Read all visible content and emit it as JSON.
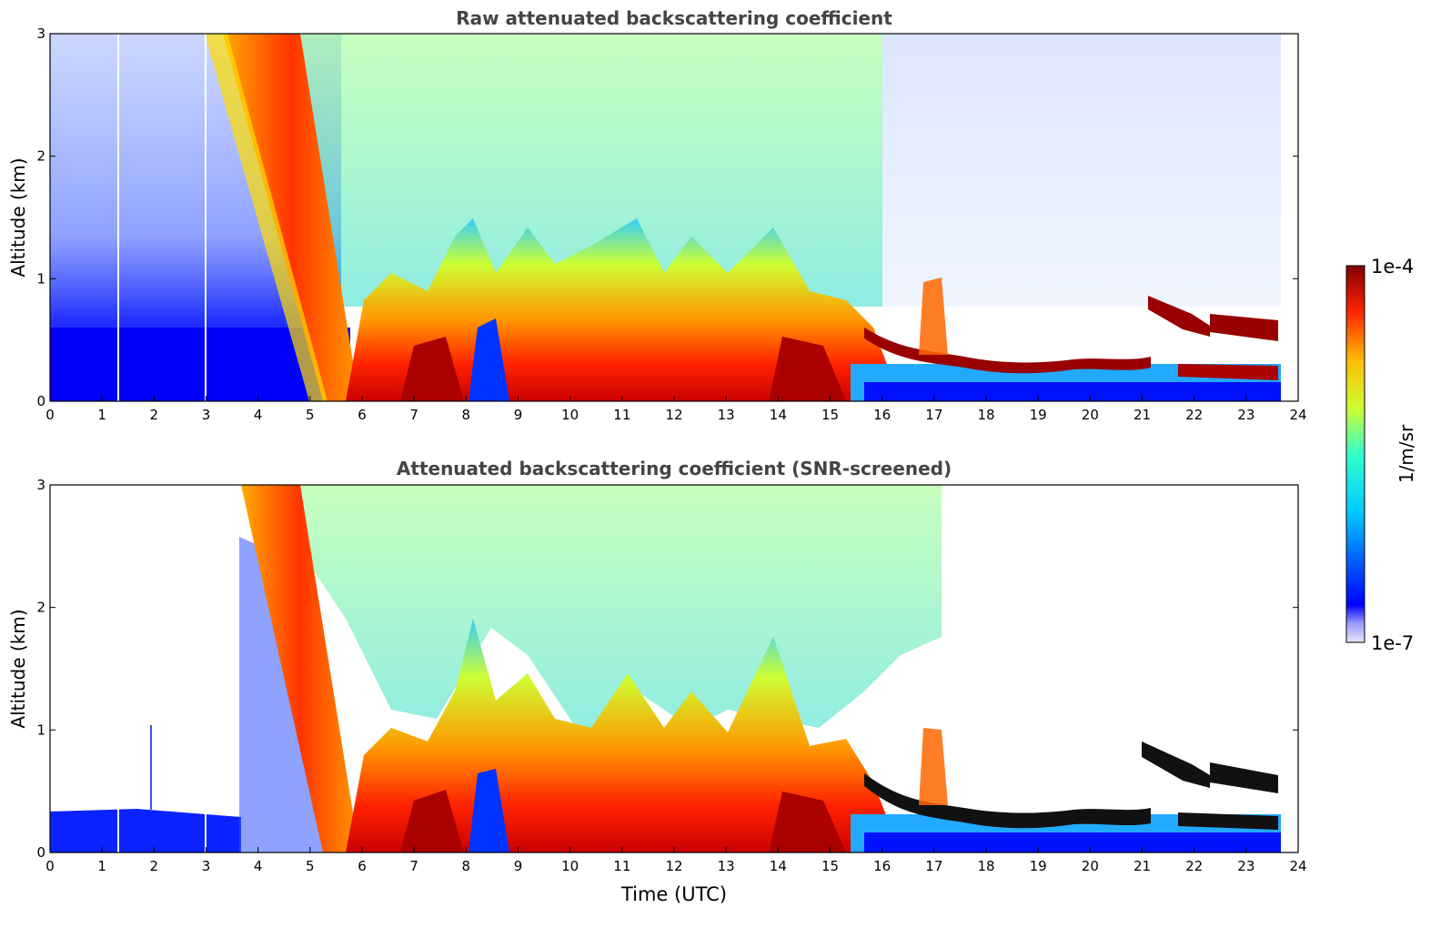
{
  "chart_data": [
    {
      "type": "heatmap",
      "title": "Raw attenuated backscattering coefficient",
      "xlabel": "",
      "ylabel": "Altitude (km)",
      "xlim": [
        0,
        24
      ],
      "ylim": [
        0,
        3
      ],
      "x_ticks": [
        "0",
        "1",
        "2",
        "3",
        "4",
        "5",
        "6",
        "7",
        "8",
        "9",
        "10",
        "11",
        "12",
        "13",
        "14",
        "15",
        "16",
        "17",
        "18",
        "19",
        "20",
        "21",
        "22",
        "23",
        "24"
      ],
      "y_ticks": [
        "0",
        "1",
        "2",
        "3"
      ],
      "screened": false
    },
    {
      "type": "heatmap",
      "title": "Attenuated backscattering coefficient (SNR-screened)",
      "xlabel": "Time (UTC)",
      "ylabel": "Altitude (km)",
      "xlim": [
        0,
        24
      ],
      "ylim": [
        0,
        3
      ],
      "x_ticks": [
        "0",
        "1",
        "2",
        "3",
        "4",
        "5",
        "6",
        "7",
        "8",
        "9",
        "10",
        "11",
        "12",
        "13",
        "14",
        "15",
        "16",
        "17",
        "18",
        "19",
        "20",
        "21",
        "22",
        "23",
        "24"
      ],
      "y_ticks": [
        "0",
        "1",
        "2",
        "3"
      ],
      "screened": true
    }
  ],
  "colorbar": {
    "label": "1/m/sr",
    "max_label": "1e-4",
    "min_label": "1e-7",
    "scale": "log",
    "range": [
      1e-07,
      0.0001
    ]
  },
  "colors": {
    "low": "#0000ff",
    "high": "#800000",
    "title": "#444444"
  }
}
